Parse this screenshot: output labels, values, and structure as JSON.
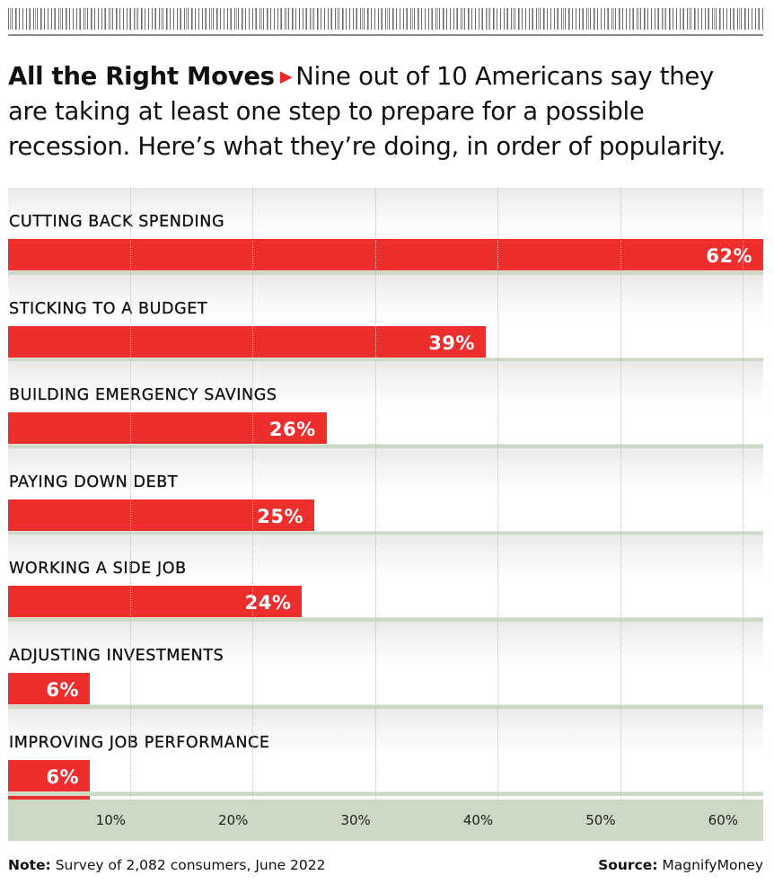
{
  "header": {
    "title": "All the Right Moves",
    "arrow_icon": "right-triangle",
    "dek": "Nine out of 10 Americans say they are taking at least one step to prepare for a possible recession. Here’s what they’re doing, in order of popularity."
  },
  "footer": {
    "note_label": "Note:",
    "note_text": "Survey of 2,082 consumers, June 2022",
    "source_label": "Source:",
    "source_text": "MagnifyMoney"
  },
  "colors": {
    "bar": "#ee2d2d",
    "accent_arrow": "#e8262b",
    "axis_band": "#cdd8c5",
    "separator": "#cdd8c5"
  },
  "chart_data": {
    "type": "bar",
    "orientation": "horizontal",
    "title": "All the Right Moves",
    "xlabel": "",
    "ylabel": "",
    "xlim": [
      0,
      62
    ],
    "grid": true,
    "legend": "none",
    "categories": [
      "CUTTING BACK SPENDING",
      "STICKING TO A BUDGET",
      "BUILDING EMERGENCY SAVINGS",
      "PAYING DOWN DEBT",
      "WORKING A SIDE JOB",
      "ADJUSTING INVESTMENTS",
      "IMPROVING JOB PERFORMANCE"
    ],
    "values": [
      62,
      39,
      26,
      25,
      24,
      6,
      6
    ],
    "value_labels": [
      "62%",
      "39%",
      "26%",
      "25%",
      "24%",
      "6%",
      "6%"
    ],
    "x_ticks": [
      10,
      20,
      30,
      40,
      50,
      60
    ],
    "x_tick_labels": [
      "10%",
      "20%",
      "30%",
      "40%",
      "50%",
      "60%"
    ],
    "units": "percent of Americans"
  }
}
